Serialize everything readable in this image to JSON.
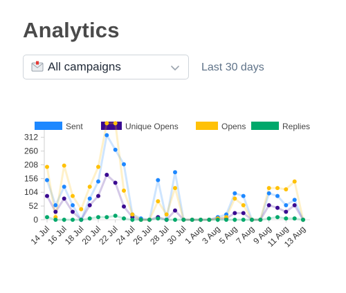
{
  "header": {
    "title": "Analytics"
  },
  "filter": {
    "campaign_select_value": "All campaigns",
    "date_range_label": "Last 30 days"
  },
  "chart_data": {
    "type": "line",
    "categories": [
      "14 Jul",
      "15 Jul",
      "16 Jul",
      "17 Jul",
      "18 Jul",
      "19 Jul",
      "20 Jul",
      "21 Jul",
      "22 Jul",
      "23 Jul",
      "24 Jul",
      "25 Jul",
      "26 Jul",
      "27 Jul",
      "28 Jul",
      "29 Jul",
      "30 Jul",
      "31 Jul",
      "1 Aug",
      "2 Aug",
      "3 Aug",
      "4 Aug",
      "5 Aug",
      "6 Aug",
      "7 Aug",
      "8 Aug",
      "9 Aug",
      "10 Aug",
      "11 Aug",
      "12 Aug",
      "13 Aug"
    ],
    "tick_labels": [
      "14 Jul",
      "16 Jul",
      "18 Jul",
      "20 Jul",
      "22 Jul",
      "24 Jul",
      "26 Jul",
      "28 Jul",
      "30 Jul",
      "1 Aug",
      "3 Aug",
      "5 Aug",
      "7 Aug",
      "9 Aug",
      "11 Aug",
      "13 Aug"
    ],
    "y_ticks": [
      0,
      52,
      104,
      156,
      208,
      260,
      312
    ],
    "ylim": [
      0,
      340
    ],
    "series": [
      {
        "name": "Sent",
        "color": "#1e88ff",
        "values": [
          150,
          55,
          125,
          55,
          0,
          80,
          145,
          320,
          265,
          210,
          20,
          5,
          0,
          150,
          0,
          180,
          0,
          0,
          0,
          0,
          10,
          20,
          100,
          90,
          0,
          0,
          100,
          90,
          55,
          75,
          0
        ]
      },
      {
        "name": "Unique Opens",
        "color": "#3a0a91",
        "values": [
          90,
          30,
          80,
          30,
          0,
          55,
          90,
          170,
          140,
          50,
          10,
          0,
          0,
          10,
          0,
          35,
          0,
          0,
          0,
          0,
          5,
          5,
          25,
          25,
          0,
          0,
          55,
          45,
          30,
          55,
          0
        ]
      },
      {
        "name": "Opens",
        "color": "#ffc107",
        "values": [
          200,
          10,
          205,
          90,
          40,
          125,
          200,
          365,
          365,
          110,
          20,
          0,
          0,
          70,
          20,
          120,
          0,
          0,
          0,
          0,
          5,
          10,
          80,
          55,
          0,
          0,
          120,
          120,
          115,
          145,
          0
        ]
      },
      {
        "name": "Replies",
        "color": "#00a86b",
        "values": [
          10,
          0,
          0,
          0,
          0,
          5,
          10,
          10,
          15,
          5,
          0,
          0,
          0,
          5,
          0,
          0,
          0,
          0,
          0,
          0,
          0,
          0,
          0,
          0,
          0,
          0,
          5,
          10,
          5,
          5,
          0
        ]
      }
    ],
    "legend_position": "top",
    "grid": false
  }
}
